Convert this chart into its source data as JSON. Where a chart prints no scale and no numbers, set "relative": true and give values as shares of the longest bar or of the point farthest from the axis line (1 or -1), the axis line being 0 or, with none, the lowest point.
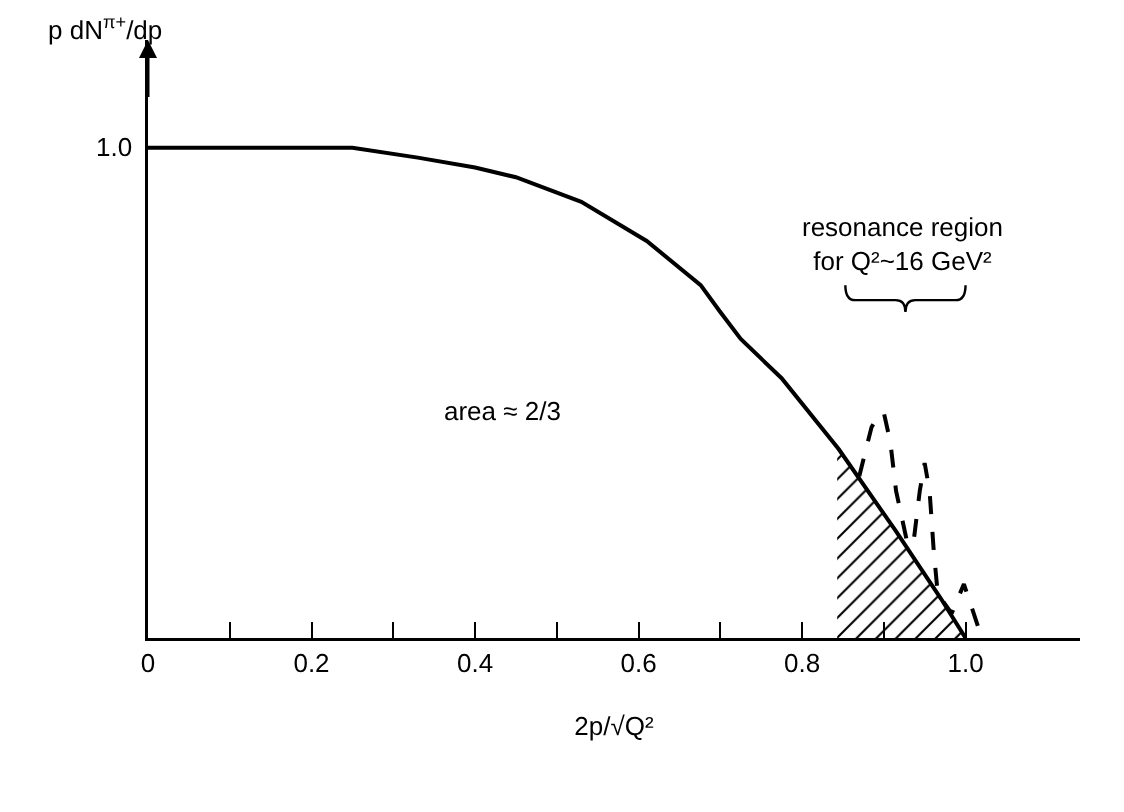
{
  "chart_data": {
    "type": "line",
    "xlabel": "2p/√Q²",
    "ylabel": "p dN$^{π+}$/dp",
    "relative": true,
    "xlim": [
      0,
      1.14
    ],
    "xticks": [
      0,
      {
        "value": 0.1,
        "label": null
      },
      0.2,
      {
        "value": 0.3,
        "label": null
      },
      0.4,
      {
        "value": 0.5,
        "label": null
      },
      0.6,
      {
        "value": 0.7,
        "label": null
      },
      0.8,
      {
        "value": 0.9,
        "label": null
      },
      {
        "value": 1.0,
        "label": "1.0"
      }
    ],
    "series": [
      {
        "color": "#000000",
        "line_style": "solid",
        "x": [
          0,
          0.1,
          0.2,
          0.25,
          0.33,
          0.4,
          0.45,
          0.53,
          0.61,
          0.676,
          0.7,
          0.725,
          0.775,
          0.845,
          0.914,
          0.97,
          1.0
        ],
        "values": [
          1,
          1,
          1,
          1,
          0.98,
          0.96,
          0.94,
          0.89,
          0.81,
          0.72,
          0.665,
          0.61,
          0.53,
          0.385,
          0.22,
          0.08,
          0
        ]
      },
      {
        "color": "#000000",
        "line_style": "dashed",
        "x": [
          0.87,
          0.885,
          0.892,
          0.9,
          0.908,
          0.915,
          0.928,
          0.936,
          0.944,
          0.95,
          0.956,
          0.961,
          0.966,
          0.983,
          0.998,
          1.02
        ],
        "values": [
          0.33,
          0.43,
          0.45,
          0.46,
          0.4,
          0.3,
          0.2,
          0.19,
          0.3,
          0.357,
          0.3,
          0.18,
          0.09,
          0.05,
          0.11,
          0
        ]
      },
      {
        "type": "area",
        "color": "#000000",
        "x": [
          0.843,
          0.914,
          0.97,
          1.0
        ],
        "values": [
          0.385,
          0.22,
          0.08,
          0
        ]
      }
    ],
    "annotations": [
      {
        "text": "1.0",
        "x": 0,
        "y": 1
      },
      "area ≈ 2/3",
      "resonance region\nfor Q²~16 GeV²"
    ],
    "marker": "none",
    "grid": false
  }
}
